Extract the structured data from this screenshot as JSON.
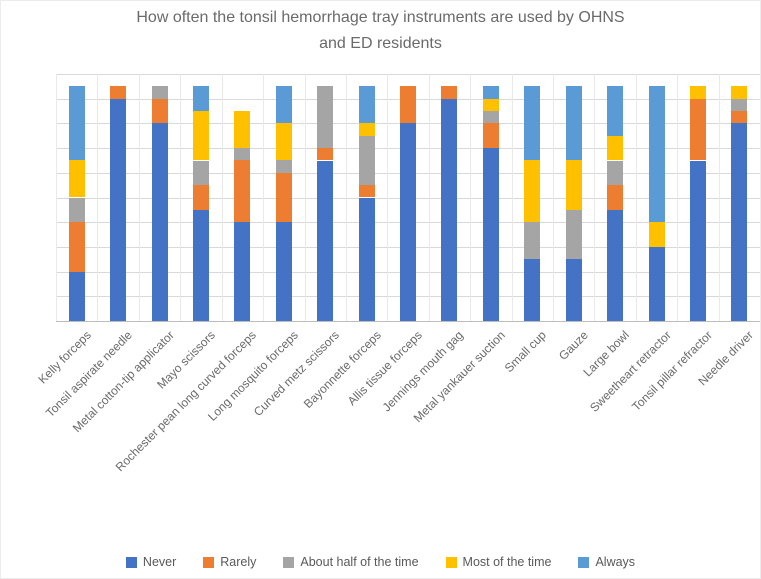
{
  "title": {
    "text": "How often the tonsil hemorrhage tray instruments are used by OHNS and ED residents",
    "lines": [
      "How often the tonsil hemorrhage tray instruments are used by OHNS",
      "and ED residents"
    ]
  },
  "chart_data": {
    "type": "bar",
    "subtype": "stacked-column",
    "title": "How often the tonsil hemorrhage tray instruments are used by OHNS and ED residents",
    "categories": [
      "Kelly forceps",
      "Tonsil aspirate needle",
      "Metal cotton-tip applicator",
      "Mayo scissors",
      "Rochester pean long curved forceps",
      "Long mosquito forceps",
      "Curved metz scissors",
      "Bayonnette forceps",
      "Allis tissue forceps",
      "Jennings mouth gag",
      "Metal yankauer suction",
      "Small cup",
      "Gauze",
      "Large bowl",
      "Sweetheart retractor",
      "Tonsil pillar refractor",
      "Needle driver"
    ],
    "series": [
      {
        "name": "Never",
        "color": "#4472C4",
        "values": [
          4,
          18,
          16,
          9,
          8,
          8,
          13,
          10,
          16,
          18,
          14,
          5,
          5,
          9,
          6,
          13,
          16
        ]
      },
      {
        "name": "Rarely",
        "color": "#ED7D31",
        "values": [
          4,
          1,
          2,
          2,
          5,
          4,
          1,
          1,
          3,
          1,
          2,
          0,
          0,
          2,
          0,
          5,
          1
        ]
      },
      {
        "name": "About half of the time",
        "color": "#A5A5A5",
        "values": [
          2,
          0,
          1,
          2,
          1,
          1,
          5,
          4,
          0,
          0,
          1,
          3,
          4,
          2,
          0,
          0,
          1
        ]
      },
      {
        "name": "Most of the time",
        "color": "#FFC000",
        "values": [
          3,
          0,
          0,
          4,
          3,
          3,
          0,
          1,
          0,
          0,
          1,
          5,
          4,
          2,
          2,
          1,
          1
        ]
      },
      {
        "name": "Always",
        "color": "#5B9BD5",
        "values": [
          6,
          0,
          0,
          2,
          0,
          3,
          0,
          3,
          0,
          0,
          1,
          6,
          6,
          4,
          11,
          0,
          0
        ]
      }
    ],
    "ylim": [
      0,
      20
    ],
    "gridline_step": 2,
    "y_axis_labels_visible": false,
    "grid": true,
    "legend_position": "bottom"
  }
}
